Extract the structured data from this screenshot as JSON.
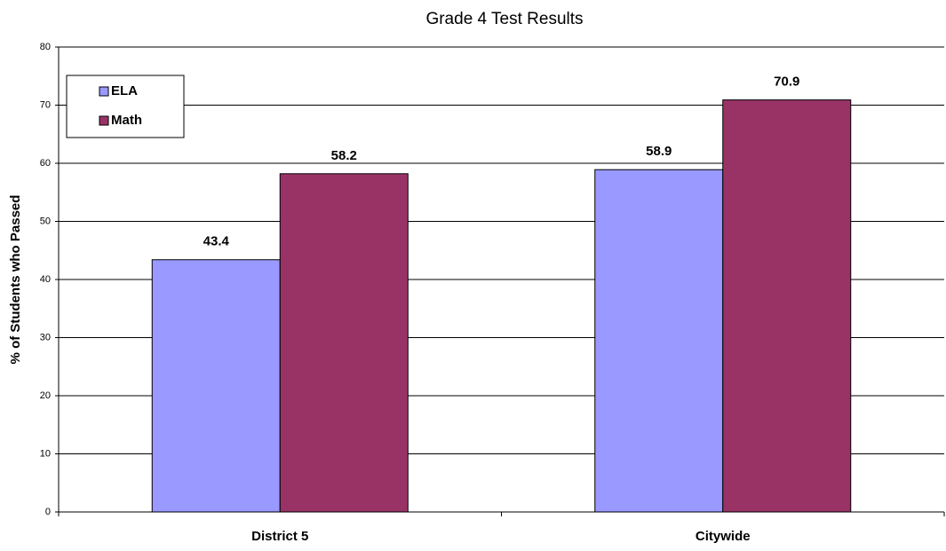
{
  "chart_data": {
    "type": "bar",
    "title": "Grade 4 Test Results",
    "ylabel": "% of Students who Passed",
    "categories": [
      "District 5",
      "Citywide"
    ],
    "series": [
      {
        "name": "ELA",
        "color": "#9999ff",
        "values": [
          43.4,
          58.9
        ]
      },
      {
        "name": "Math",
        "color": "#993366",
        "values": [
          58.2,
          70.9
        ]
      }
    ],
    "ylim": [
      0,
      80
    ],
    "yticks": [
      0,
      10,
      20,
      30,
      40,
      50,
      60,
      70,
      80
    ],
    "grid": true,
    "legend": "upper left"
  }
}
